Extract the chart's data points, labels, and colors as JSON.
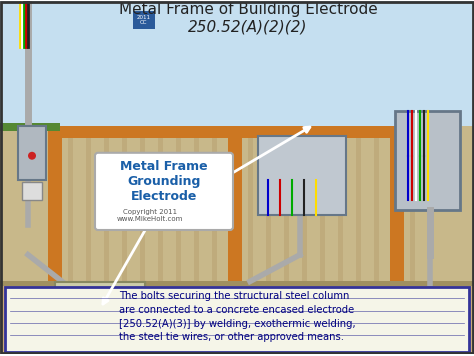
{
  "title_line1": "Metal Frame of Building Electrode",
  "title_line2": "250.52(A)(2)(2)",
  "label_main": "Metal Frame\nGrounding\nElectrode",
  "copyright": "Copyright 2011\nwww.MikeHolt.com",
  "bottom_text_line1": "The bolts securing the structural steel column",
  "bottom_text_line2": "are connected to a concrete encased electrode",
  "bottom_text_line3": "[250.52(A)(3)] by welding, exothermic welding,",
  "bottom_text_line4": "the steel tie wires, or other approved means.",
  "bg_white_box": "#ffffff",
  "border_color": "#333333",
  "title_color": "#222222",
  "label_color": "#1a5fa8",
  "bottom_text_color": "#000080",
  "orange_frame_color": "#cc7722",
  "sky_blue": "#c5dff0",
  "bg_wall": "#c8b88a",
  "wall_stripe_color": "#b8a070"
}
